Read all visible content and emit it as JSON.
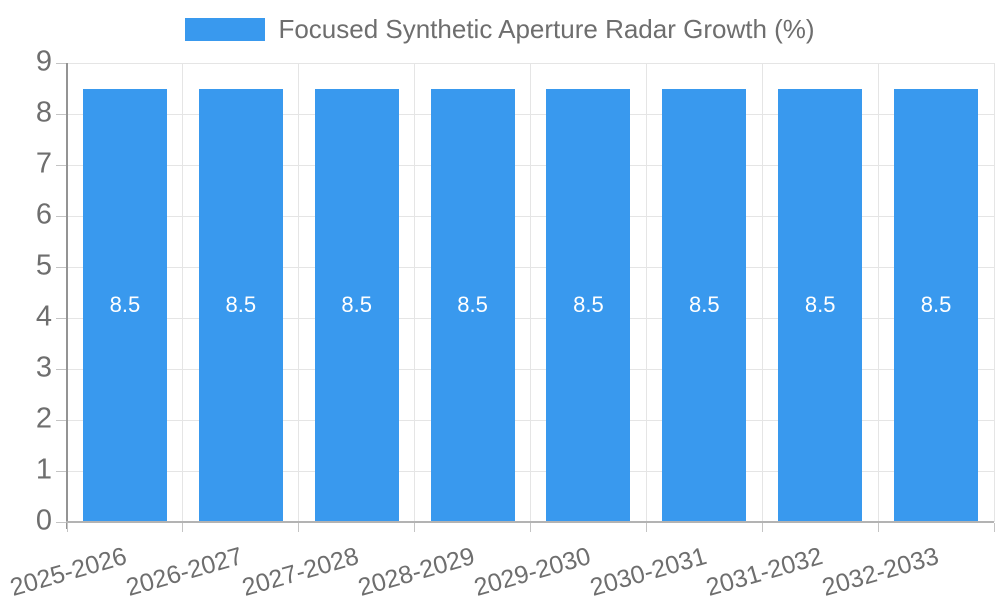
{
  "chart_data": {
    "type": "bar",
    "title": "Focused Synthetic Aperture Radar Growth (%)",
    "legend_entries": [
      "Focused Synthetic Aperture Radar Growth (%)"
    ],
    "legend_position": "top-center",
    "categories": [
      "2025-2026",
      "2026-2027",
      "2027-2028",
      "2028-2029",
      "2029-2030",
      "2030-2031",
      "2031-2032",
      "2032-2033"
    ],
    "values": [
      8.5,
      8.5,
      8.5,
      8.5,
      8.5,
      8.5,
      8.5,
      8.5
    ],
    "bar_labels": [
      "8.5",
      "8.5",
      "8.5",
      "8.5",
      "8.5",
      "8.5",
      "8.5",
      "8.5"
    ],
    "xlabel": "",
    "ylabel": "",
    "ylim": [
      0,
      9
    ],
    "yticks": [
      0,
      1,
      2,
      3,
      4,
      5,
      6,
      7,
      8,
      9
    ],
    "grid": true,
    "bar_color": "#3999ee",
    "value_label_color": "#ffffff"
  },
  "colors": {
    "background": "#ffffff",
    "bar": "#3999ee",
    "grid": "#e5e5e5",
    "axis": "#b3b3b3",
    "y_axis": "#949494",
    "tick": "#c4c4c4",
    "text": "#6e6e6e",
    "bar_value_text": "#ffffff"
  }
}
